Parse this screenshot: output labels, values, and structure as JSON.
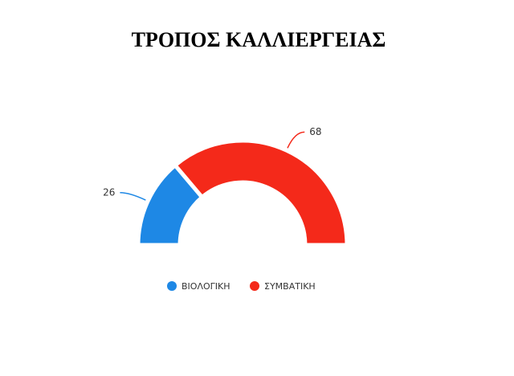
{
  "chart_data": {
    "type": "pie",
    "title": "ΤΡΟΠΟΣ ΚΑΛΛΙΕΡΓΕΙΑΣ",
    "categories": [
      "ΒΙΟΛΟΓΙΚΗ",
      "ΣΥΜΒΑΤΙΚΗ"
    ],
    "values": [
      26,
      68
    ],
    "colors": [
      "#1e88e5",
      "#f4291a"
    ],
    "legend": "bottom"
  }
}
